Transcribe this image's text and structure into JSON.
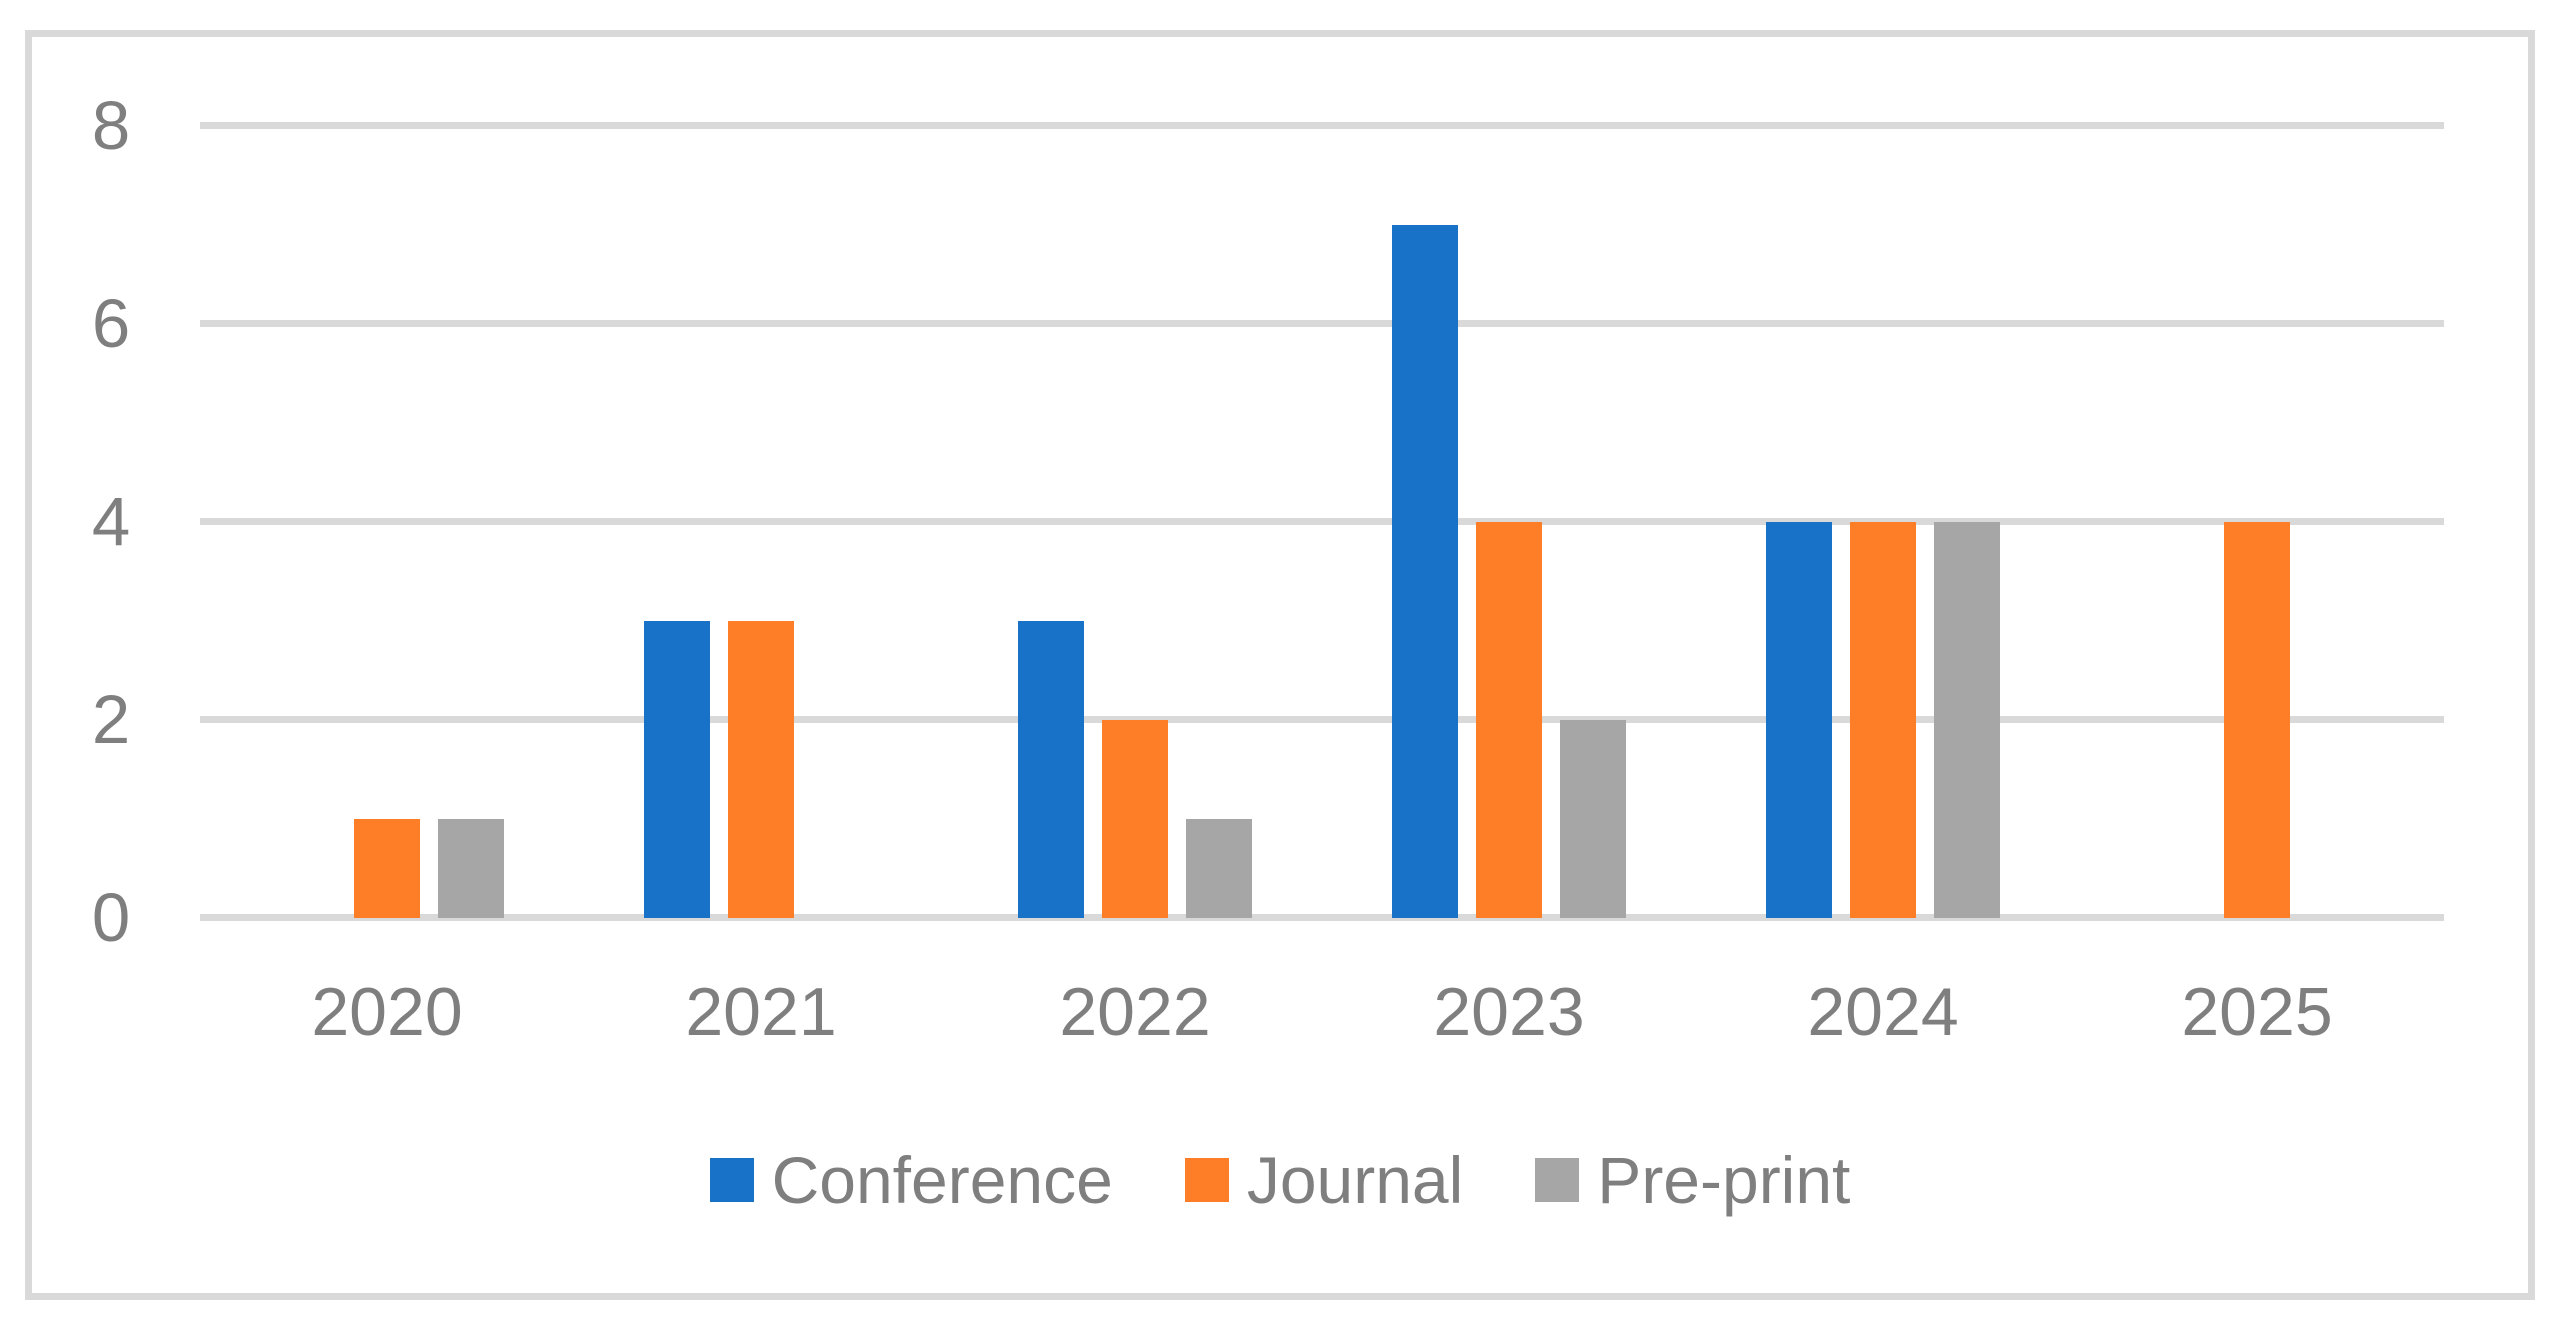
{
  "chart_data": {
    "type": "bar",
    "title": "",
    "categories": [
      "2020",
      "2021",
      "2022",
      "2023",
      "2024",
      "2025"
    ],
    "series": [
      {
        "name": "Conference",
        "color": "#1772C8",
        "values": [
          0,
          3,
          3,
          7,
          4,
          0
        ]
      },
      {
        "name": "Journal",
        "color": "#FD7E26",
        "values": [
          1,
          3,
          2,
          4,
          4,
          4
        ]
      },
      {
        "name": "Pre-print",
        "color": "#A6A6A6",
        "values": [
          1,
          0,
          1,
          2,
          4,
          0
        ]
      }
    ],
    "xlabel": "",
    "ylabel": "",
    "ylim": [
      0,
      8
    ],
    "yticks": [
      0,
      2,
      4,
      6,
      8
    ],
    "grid": true,
    "legend_position": "bottom"
  },
  "colors": {
    "background": "#FFFFFF",
    "frame_border": "#D9D9D9",
    "gridline": "#D9D9D9",
    "axis_text": "#7F7F7F"
  }
}
